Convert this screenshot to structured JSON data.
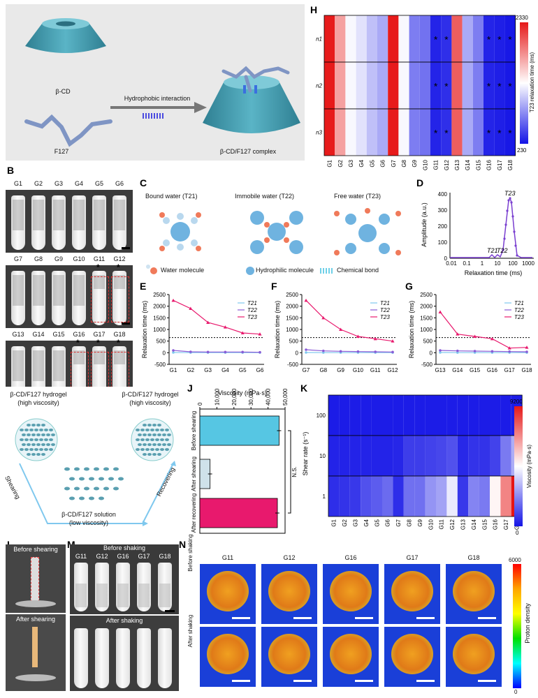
{
  "panels": {
    "A": "A",
    "B": "B",
    "C": "C",
    "D": "D",
    "E": "E",
    "F": "F",
    "G": "G",
    "H": "H",
    "I": "I",
    "J": "J",
    "K": "K",
    "L": "L",
    "M": "M",
    "N": "N"
  },
  "panel_a": {
    "top": "β-CD",
    "bottom": "F127",
    "arrow": "Hydrophobic interaction",
    "complex": "β-CD/F127 complex"
  },
  "groups": [
    "G1",
    "G2",
    "G3",
    "G4",
    "G5",
    "G6",
    "G7",
    "G8",
    "G9",
    "G10",
    "G11",
    "G12",
    "G13",
    "G14",
    "G15",
    "G16",
    "G17",
    "G18"
  ],
  "star_groups": [
    "G11",
    "G12",
    "G16",
    "G17",
    "G18"
  ],
  "panel_c": {
    "bound": "Bound water (T21)",
    "immobile": "Immobile  water (T22)",
    "free": "Free water (T23)",
    "legend_water": "Water molecule",
    "legend_hydro": "Hydrophilic molecule",
    "legend_bond": "Chemical bond"
  },
  "panel_d": {
    "ylabel": "Amplitude (a.u.)",
    "xlabel": "Relaxation time (ms)",
    "peaks": [
      "T21",
      "T22",
      "T23"
    ],
    "yticks": [
      "0",
      "100",
      "200",
      "300",
      "400"
    ],
    "xticks": [
      "0.01",
      "0.1",
      "1",
      "10",
      "100",
      "1000"
    ]
  },
  "panel_h": {
    "rows": [
      "n1",
      "n2",
      "n3"
    ],
    "cbar_max": "2330",
    "cbar_min": "230",
    "cbar_label": "T23 relaxation time (ms)",
    "star": "*"
  },
  "panel_i": {
    "left_title": "β-CD/F127 hydrogel",
    "left_sub": "(high viscosity)",
    "right_title": "β-CD/F127 hydrogel",
    "right_sub": "(high viscosity)",
    "bottom_title": "β-CD/F127 solution",
    "bottom_sub": "(low viscosity)",
    "shearing": "Shearing",
    "recovering": "Recovering"
  },
  "panel_j": {
    "title": "Viscosity  (mPa·s)",
    "xticks": [
      "0",
      "10,000",
      "20,000",
      "30,000",
      "40,000",
      "50,000"
    ],
    "bars": [
      "Before shearing",
      "After shearing",
      "After recovering"
    ],
    "ns": "N.S."
  },
  "panel_k": {
    "ylabel": "Shear rate (s⁻¹)",
    "yticks": [
      "100",
      "10",
      "1"
    ],
    "cbar_max": "9200",
    "cbar_min": "0",
    "cbar_label": "Viscosity  (mPa·s)"
  },
  "panel_l": {
    "before": "Before shearing",
    "after": "After shearing"
  },
  "panel_m": {
    "before": "Before shaking",
    "after": "After shaking",
    "groups": [
      "G11",
      "G12",
      "G16",
      "G17",
      "G18"
    ]
  },
  "panel_n": {
    "groups": [
      "G11",
      "G12",
      "G16",
      "G17",
      "G18"
    ],
    "row_before": "Before shaking",
    "row_after": "After shaking",
    "cbar_max": "6000",
    "cbar_min": "0",
    "cbar_label": "Proton density"
  },
  "line_labels": {
    "ylabel": "Relaxation time (ms)",
    "yticks": [
      "2500",
      "2000",
      "1500",
      "1000",
      "500",
      "0",
      "-500"
    ],
    "legend": [
      "T21",
      "T22",
      "T23"
    ]
  },
  "chart_data": [
    {
      "type": "line",
      "panel": "E",
      "categories": [
        "G1",
        "G2",
        "G3",
        "G4",
        "G5",
        "G6"
      ],
      "ylabel": "Relaxation time (ms)",
      "ylim": [
        -500,
        2500
      ],
      "series": [
        {
          "name": "T21",
          "values": [
            10,
            5,
            5,
            5,
            5,
            5
          ]
        },
        {
          "name": "T22",
          "values": [
            100,
            40,
            30,
            30,
            30,
            20
          ]
        },
        {
          "name": "T23",
          "values": [
            2250,
            1900,
            1300,
            1100,
            850,
            800
          ]
        }
      ]
    },
    {
      "type": "line",
      "panel": "F",
      "categories": [
        "G7",
        "G8",
        "G9",
        "G10",
        "G11",
        "G12"
      ],
      "ylabel": "Relaxation time (ms)",
      "ylim": [
        -500,
        2500
      ],
      "series": [
        {
          "name": "T21",
          "values": [
            10,
            5,
            5,
            5,
            5,
            5
          ]
        },
        {
          "name": "T22",
          "values": [
            130,
            80,
            60,
            50,
            40,
            30
          ]
        },
        {
          "name": "T23",
          "values": [
            2250,
            1500,
            1000,
            700,
            600,
            500
          ]
        }
      ]
    },
    {
      "type": "line",
      "panel": "G",
      "categories": [
        "G13",
        "G14",
        "G15",
        "G16",
        "G17",
        "G18"
      ],
      "ylabel": "Relaxation time (ms)",
      "ylim": [
        -500,
        2500
      ],
      "series": [
        {
          "name": "T21",
          "values": [
            10,
            5,
            5,
            5,
            5,
            5
          ]
        },
        {
          "name": "T22",
          "values": [
            100,
            80,
            70,
            60,
            50,
            40
          ]
        },
        {
          "name": "T23",
          "values": [
            1750,
            800,
            700,
            600,
            200,
            230
          ]
        }
      ]
    },
    {
      "type": "bar",
      "panel": "J",
      "categories": [
        "Before shearing",
        "After shearing",
        "After recovering"
      ],
      "values": [
        46500,
        6000,
        45500
      ],
      "xlim": [
        0,
        50000
      ]
    },
    {
      "type": "heatmap",
      "panel": "H",
      "rows": [
        "n1",
        "n2",
        "n3"
      ],
      "cols": [
        "G1",
        "G2",
        "G3",
        "G4",
        "G5",
        "G6",
        "G7",
        "G8",
        "G9",
        "G10",
        "G11",
        "G12",
        "G13",
        "G14",
        "G15",
        "G16",
        "G17",
        "G18"
      ],
      "values": [
        2300,
        1700,
        1250,
        1150,
        1000,
        900,
        2300,
        1250,
        700,
        650,
        300,
        350,
        2000,
        900,
        700,
        300,
        280,
        250
      ],
      "range": [
        230,
        2330
      ]
    },
    {
      "type": "heatmap",
      "panel": "K",
      "rows": [
        "100",
        "10",
        "1"
      ],
      "cols": [
        "G1",
        "G2",
        "G3",
        "G4",
        "G5",
        "G6",
        "G7",
        "G8",
        "G9",
        "G10",
        "G11",
        "G12",
        "G13",
        "G14",
        "G15",
        "G16",
        "G17",
        "G18"
      ],
      "values": [
        [
          150,
          150,
          150,
          150,
          150,
          150,
          150,
          150,
          150,
          150,
          150,
          150,
          150,
          150,
          150,
          150,
          150,
          150
        ],
        [
          300,
          300,
          300,
          300,
          300,
          300,
          350,
          800,
          800,
          900,
          1000,
          1200,
          400,
          600,
          600,
          900,
          2000,
          3000
        ],
        [
          500,
          600,
          700,
          1200,
          1400,
          1700,
          500,
          1800,
          1800,
          2500,
          2800,
          4200,
          700,
          2200,
          2000,
          4800,
          7000,
          9200
        ]
      ],
      "range": [
        0,
        9200
      ]
    }
  ],
  "colors": {
    "pink": "#e8196d",
    "purple": "#8a5bd6",
    "lightblue": "#7fc8ee",
    "teal": "#3aa6b6",
    "cyan": "#5bc6e3",
    "darkteal": "#2b7c8f"
  }
}
